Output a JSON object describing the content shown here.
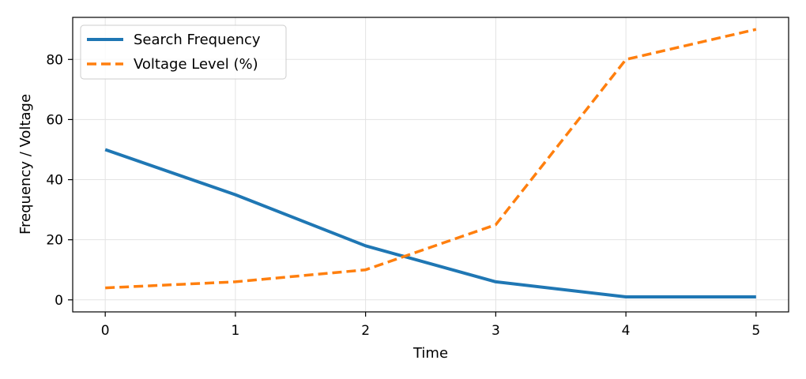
{
  "chart_data": {
    "type": "line",
    "title": "",
    "xlabel": "Time",
    "ylabel": "Frequency / Voltage",
    "x": [
      0,
      1,
      2,
      3,
      4,
      5
    ],
    "xticks": [
      0,
      1,
      2,
      3,
      4,
      5
    ],
    "yticks": [
      0,
      20,
      40,
      60,
      80
    ],
    "xlim": [
      -0.25,
      5.25
    ],
    "ylim": [
      -4,
      94
    ],
    "grid": true,
    "legend_position": "top-left",
    "series": [
      {
        "name": "Search Frequency",
        "values": [
          50,
          35,
          18,
          6,
          1,
          1
        ],
        "color": "#1f77b4",
        "style": "solid"
      },
      {
        "name": "Voltage Level (%)",
        "values": [
          4,
          6,
          10,
          25,
          80,
          90
        ],
        "color": "#ff7f0e",
        "style": "dashed"
      }
    ]
  }
}
